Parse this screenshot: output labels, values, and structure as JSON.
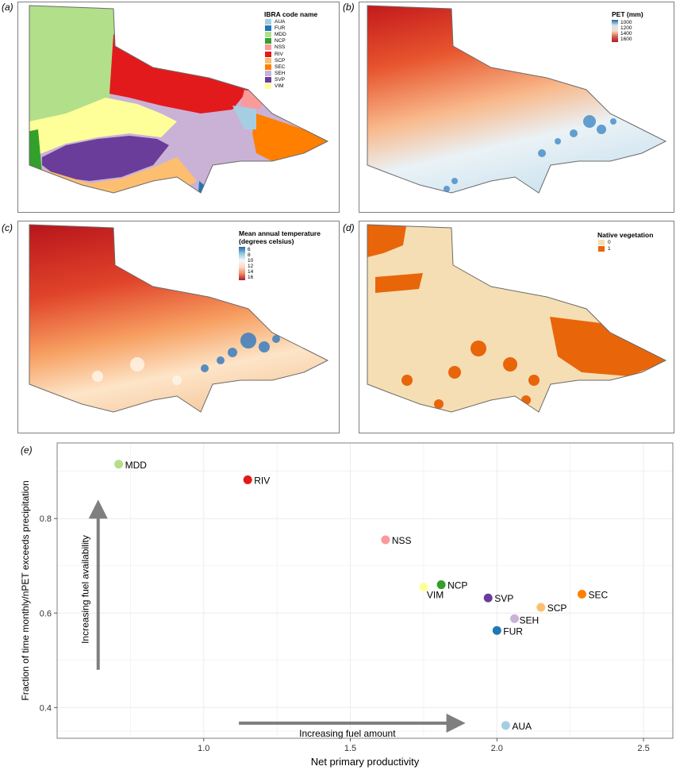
{
  "panels": {
    "a": {
      "label": "(a)",
      "legend_title": "IBRA code name",
      "regions": [
        {
          "code": "AUA",
          "color": "#a6cee3"
        },
        {
          "code": "FUR",
          "color": "#1f78b4"
        },
        {
          "code": "MDD",
          "color": "#b2df8a"
        },
        {
          "code": "NCP",
          "color": "#33a02c"
        },
        {
          "code": "NSS",
          "color": "#fb9a99"
        },
        {
          "code": "RIV",
          "color": "#e31a1c"
        },
        {
          "code": "SCP",
          "color": "#fdbf6f"
        },
        {
          "code": "SEC",
          "color": "#ff7f00"
        },
        {
          "code": "SEH",
          "color": "#cab2d6"
        },
        {
          "code": "SVP",
          "color": "#6a3d9a"
        },
        {
          "code": "VIM",
          "color": "#ffff99"
        }
      ]
    },
    "b": {
      "label": "(b)",
      "legend_title": "PET (mm)",
      "ticks": [
        "1000",
        "1200",
        "1400",
        "1600"
      ],
      "ramp_colors": [
        "#2166ac",
        "#d1e5f0",
        "#fddbc7",
        "#d6604d",
        "#b2182b"
      ]
    },
    "c": {
      "label": "(c)",
      "legend_title_line1": "Mean annual temperature",
      "legend_title_line2": "(degrees celsius)",
      "ticks": [
        "6",
        "8",
        "10",
        "12",
        "14",
        "16"
      ],
      "ramp_colors": [
        "#2166ac",
        "#92c5de",
        "#f7f7f7",
        "#fddbc7",
        "#ef8a62",
        "#b2182b"
      ]
    },
    "d": {
      "label": "(d)",
      "legend_title": "Native vegetation",
      "classes": [
        {
          "label": "0",
          "color": "#f5deb3"
        },
        {
          "label": "1",
          "color": "#e8650a"
        }
      ]
    }
  },
  "chart_data": {
    "type": "scatter",
    "label": "(e)",
    "xlabel": "Net primary productivity",
    "ylabel": "Fraction of time monthly/nPET exceeds precipitation",
    "xlim": [
      0.5,
      2.6
    ],
    "ylim": [
      0.335,
      0.96
    ],
    "xticks": [
      1.0,
      1.5,
      2.0,
      2.5
    ],
    "yticks": [
      0.4,
      0.6,
      0.8
    ],
    "xtick_labels": [
      "1.0",
      "1.5",
      "2.0",
      "2.5"
    ],
    "ytick_labels": [
      "0.4",
      "0.6",
      "0.8"
    ],
    "grid": true,
    "points": [
      {
        "name": "MDD",
        "x": 0.71,
        "y": 0.915,
        "color": "#b2df8a"
      },
      {
        "name": "RIV",
        "x": 1.15,
        "y": 0.882,
        "color": "#e31a1c"
      },
      {
        "name": "NSS",
        "x": 1.62,
        "y": 0.755,
        "color": "#fb9a99"
      },
      {
        "name": "NCP",
        "x": 1.81,
        "y": 0.66,
        "color": "#33a02c"
      },
      {
        "name": "VIM",
        "x": 1.75,
        "y": 0.655,
        "color": "#ffff99"
      },
      {
        "name": "SVP",
        "x": 1.97,
        "y": 0.632,
        "color": "#6a3d9a"
      },
      {
        "name": "SEC",
        "x": 2.29,
        "y": 0.64,
        "color": "#ff7f00"
      },
      {
        "name": "SCP",
        "x": 2.15,
        "y": 0.612,
        "color": "#fdbf6f"
      },
      {
        "name": "SEH",
        "x": 2.06,
        "y": 0.588,
        "color": "#cab2d6"
      },
      {
        "name": "FUR",
        "x": 2.0,
        "y": 0.563,
        "color": "#1f78b4"
      },
      {
        "name": "AUA",
        "x": 2.03,
        "y": 0.362,
        "color": "#a6cee3"
      }
    ],
    "annotations": {
      "fuel_amount": "Increasing fuel amount",
      "fuel_availability": "Increasing fuel availability"
    }
  }
}
